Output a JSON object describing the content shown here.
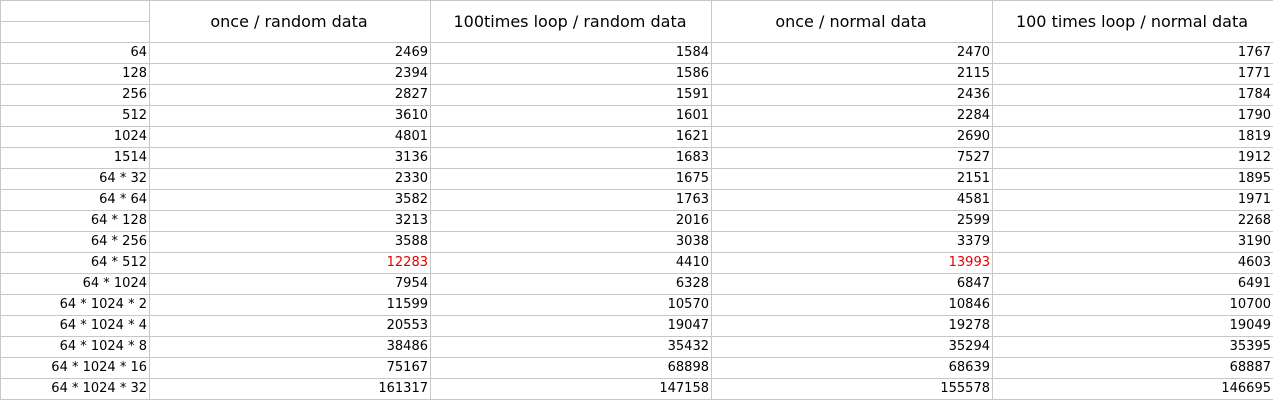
{
  "columns": [
    "once / random data",
    "100times loop / random data",
    "once / normal data",
    "100 times loop / normal data"
  ],
  "highlight_color": "#e60000",
  "rows": [
    {
      "label": "64",
      "values": [
        "2469",
        "1584",
        "2470",
        "1767"
      ]
    },
    {
      "label": "128",
      "values": [
        "2394",
        "1586",
        "2115",
        "1771"
      ]
    },
    {
      "label": "256",
      "values": [
        "2827",
        "1591",
        "2436",
        "1784"
      ]
    },
    {
      "label": "512",
      "values": [
        "3610",
        "1601",
        "2284",
        "1790"
      ]
    },
    {
      "label": "1024",
      "values": [
        "4801",
        "1621",
        "2690",
        "1819"
      ]
    },
    {
      "label": "1514",
      "values": [
        "3136",
        "1683",
        "7527",
        "1912"
      ]
    },
    {
      "label": "64 * 32",
      "values": [
        "2330",
        "1675",
        "2151",
        "1895"
      ]
    },
    {
      "label": "64 * 64",
      "values": [
        "3582",
        "1763",
        "4581",
        "1971"
      ]
    },
    {
      "label": "64 * 128",
      "values": [
        "3213",
        "2016",
        "2599",
        "2268"
      ]
    },
    {
      "label": "64 * 256",
      "values": [
        "3588",
        "3038",
        "3379",
        "3190"
      ]
    },
    {
      "label": "64 * 512",
      "values": [
        "12283",
        "4410",
        "13993",
        "4603"
      ],
      "highlight": [
        0,
        2
      ]
    },
    {
      "label": "64 * 1024",
      "values": [
        "7954",
        "6328",
        "6847",
        "6491"
      ]
    },
    {
      "label": "64 * 1024 * 2",
      "values": [
        "11599",
        "10570",
        "10846",
        "10700"
      ]
    },
    {
      "label": "64 * 1024 * 4",
      "values": [
        "20553",
        "19047",
        "19278",
        "19049"
      ]
    },
    {
      "label": "64 * 1024 * 8",
      "values": [
        "38486",
        "35432",
        "35294",
        "35395"
      ]
    },
    {
      "label": "64 * 1024 * 16",
      "values": [
        "75167",
        "68898",
        "68639",
        "68887"
      ]
    },
    {
      "label": "64 * 1024 * 32",
      "values": [
        "161317",
        "147158",
        "155578",
        "146695"
      ]
    }
  ]
}
